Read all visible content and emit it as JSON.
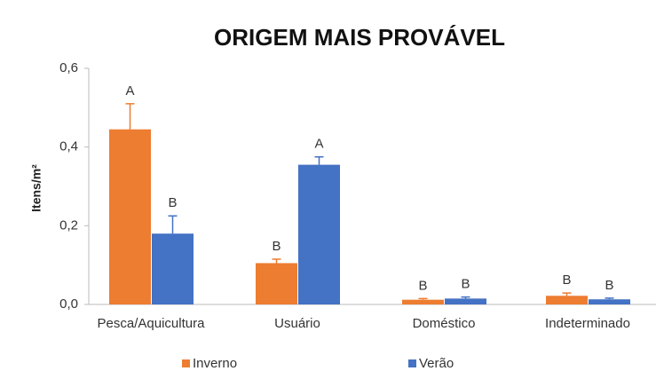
{
  "chart_data": {
    "type": "bar",
    "title": "ORIGEM MAIS PROVÁVEL",
    "y_label": "Itens/m²",
    "categories": [
      "Pesca/Aquicultura",
      "Usuário",
      "Doméstico",
      "Indeterminado"
    ],
    "series": [
      {
        "name": "Inverno",
        "color": "#ed7d31",
        "values": [
          0.445,
          0.105,
          0.012,
          0.022
        ],
        "errors": [
          0.065,
          0.01,
          0.003,
          0.007
        ],
        "annotations": [
          "A",
          "B",
          "B",
          "B"
        ]
      },
      {
        "name": "Verão",
        "color": "#4472c4",
        "values": [
          0.18,
          0.355,
          0.015,
          0.013
        ],
        "errors": [
          0.045,
          0.02,
          0.004,
          0.003
        ],
        "annotations": [
          "B",
          "A",
          "B",
          "B"
        ]
      }
    ],
    "ylim": [
      0,
      0.6
    ],
    "yticks": [
      {
        "value": 0,
        "label": "0,0"
      },
      {
        "value": 0.2,
        "label": "0,2"
      },
      {
        "value": 0.4,
        "label": "0,4"
      },
      {
        "value": 0.6,
        "label": "0,6"
      }
    ],
    "legend": "bottom"
  }
}
